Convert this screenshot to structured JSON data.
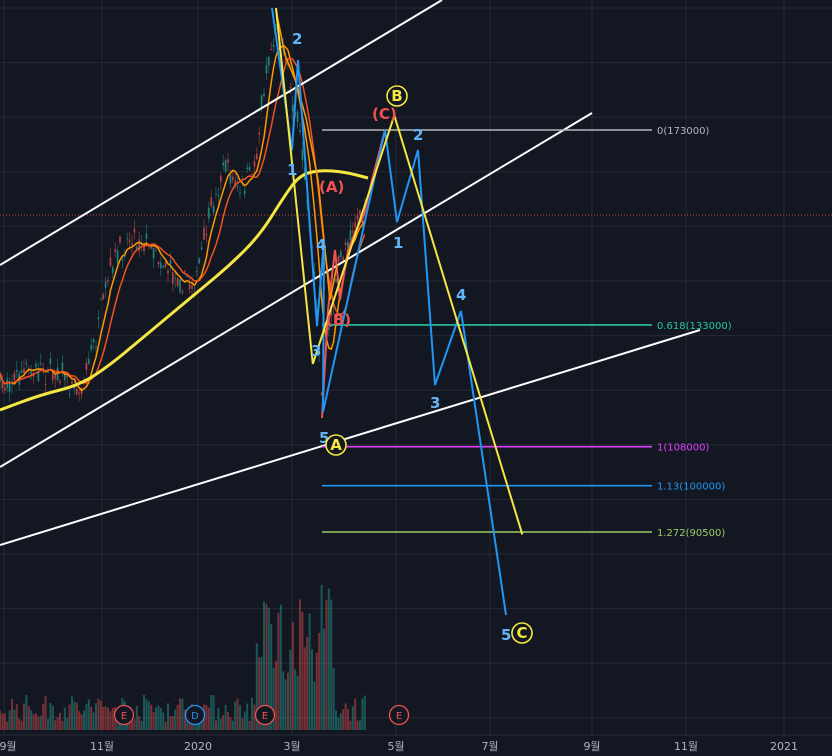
{
  "chart_data": {
    "type": "line",
    "xlabel": "",
    "ylabel": "",
    "x_ticks": [
      "9월",
      "11월",
      "2020",
      "3월",
      "5월",
      "7월",
      "9월",
      "11월",
      "2021"
    ],
    "fib_levels": [
      {
        "label": "0(173000)",
        "value": 173000,
        "color": "#b2b5be"
      },
      {
        "label": "0.618(133000)",
        "value": 133000,
        "color": "#26c6a0"
      },
      {
        "label": "1(108000)",
        "value": 108000,
        "color": "#e040fb"
      },
      {
        "label": "1.13(100000)",
        "value": 100000,
        "color": "#2196f3"
      },
      {
        "label": "1.272(90500)",
        "value": 90500,
        "color": "#9ccc65"
      }
    ],
    "corrective_abc": {
      "labels": [
        "A",
        "B",
        "C"
      ],
      "color": "#f5e642",
      "points": [
        {
          "date": "2020-03-13",
          "price": 125000
        },
        {
          "date": "2020-04-30",
          "price": 176000
        },
        {
          "date": "2020-07-20",
          "price": 90000
        }
      ]
    },
    "impulse_counts": {
      "color": "#64b5f6",
      "labels": [
        "1",
        "2",
        "3",
        "4",
        "5",
        "1",
        "2",
        "3",
        "4",
        "5"
      ]
    },
    "sub_abc": {
      "labels": [
        "(A)",
        "(B)",
        "(C)"
      ],
      "color": "#ef5350"
    },
    "events": [
      {
        "label": "E",
        "color": "#ef5350"
      },
      {
        "label": "D",
        "color": "#2196f3"
      },
      {
        "label": "E",
        "color": "#ef5350"
      },
      {
        "label": "E",
        "color": "#ef5350"
      }
    ]
  }
}
